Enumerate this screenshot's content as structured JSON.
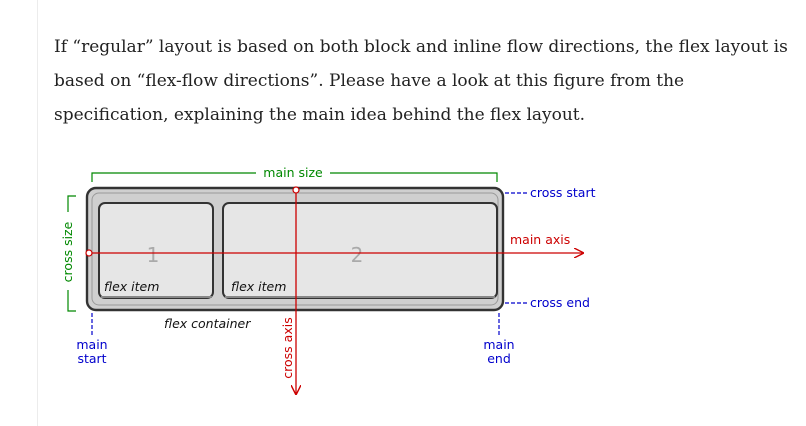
{
  "paragraph": {
    "line1": "If “regular” layout is based on both block and inline flow directions, the flex layout is",
    "line2": "based on “flex-flow directions”. Please have a look at this figure from the",
    "line3": "specification, explaining the main idea behind the flex layout."
  },
  "figure": {
    "main_size": "main size",
    "cross_size": "cross size",
    "cross_start": "cross start",
    "cross_end": "cross end",
    "main_axis": "main axis",
    "cross_axis": "cross axis",
    "main_start_1": "main",
    "main_start_2": "start",
    "main_end_1": "main",
    "main_end_2": "end",
    "flex_item_1": "flex item",
    "flex_item_2": "flex item",
    "item_1_number": "1",
    "item_2_number": "2",
    "flex_container": "flex container",
    "colors": {
      "green": "#008800",
      "red": "#cc0000",
      "blue": "#0000cc",
      "box_fill": "#e6e6e6",
      "container_fill": "#cfcfcf"
    }
  }
}
